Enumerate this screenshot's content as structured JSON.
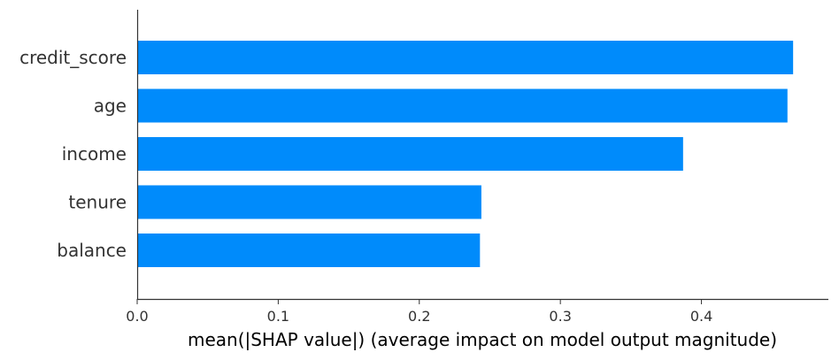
{
  "chart_data": {
    "type": "bar",
    "orientation": "horizontal",
    "categories": [
      "credit_score",
      "age",
      "income",
      "tenure",
      "balance"
    ],
    "values": [
      0.465,
      0.461,
      0.387,
      0.244,
      0.243
    ],
    "xlabel": "mean(|SHAP value|) (average impact on model output magnitude)",
    "ylabel": "",
    "xlim": [
      0,
      0.49
    ],
    "xticks": [
      "0.0",
      "0.1",
      "0.2",
      "0.3",
      "0.4"
    ],
    "xtick_values": [
      0,
      0.1,
      0.2,
      0.3,
      0.4
    ],
    "grid": false,
    "legend": "none",
    "bar_color": "#008bfb",
    "axis_color": "#333333"
  }
}
